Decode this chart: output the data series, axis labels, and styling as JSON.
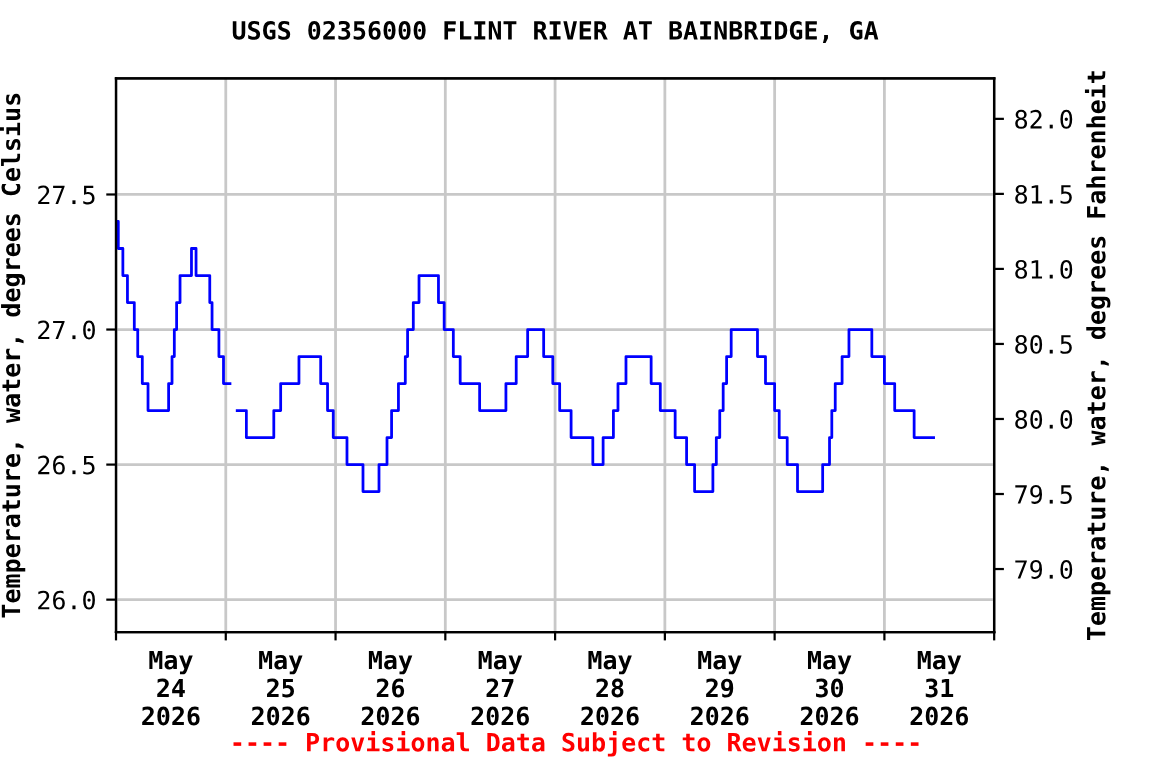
{
  "chart_data": {
    "type": "step",
    "title": "USGS 02356000 FLINT RIVER AT BAINBRIDGE, GA",
    "ylabel": "Temperature, water, degrees Celsius",
    "y2label": "Temperature, water, degrees Fahrenheit",
    "annotations": [
      "---- Provisional Data Subject to Revision ----"
    ],
    "x": [
      "2026-05-24T00:00",
      "2026-05-24T00:30",
      "2026-05-24T01:30",
      "2026-05-24T02:30",
      "2026-05-24T04:00",
      "2026-05-24T04:45",
      "2026-05-24T05:45",
      "2026-05-24T07:00",
      "2026-05-24T11:30",
      "2026-05-24T12:15",
      "2026-05-24T12:45",
      "2026-05-24T13:15",
      "2026-05-24T14:00",
      "2026-05-24T16:30",
      "2026-05-24T17:30",
      "2026-05-24T20:30",
      "2026-05-24T21:00",
      "2026-05-24T22:30",
      "2026-05-24T23:30",
      "2026-05-25T00:55",
      "2026-05-25T02:30",
      "2026-05-25T04:30",
      "2026-05-25T10:30",
      "2026-05-25T12:00",
      "2026-05-25T16:00",
      "2026-05-25T20:45",
      "2026-05-25T22:15",
      "2026-05-25T23:30",
      "2026-05-26T02:30",
      "2026-05-26T06:00",
      "2026-05-26T09:30",
      "2026-05-26T11:15",
      "2026-05-26T12:15",
      "2026-05-26T13:45",
      "2026-05-26T15:15",
      "2026-05-26T15:45",
      "2026-05-26T17:00",
      "2026-05-26T18:15",
      "2026-05-26T22:30",
      "2026-05-26T23:45",
      "2026-05-27T01:45",
      "2026-05-27T03:15",
      "2026-05-27T07:30",
      "2026-05-27T13:15",
      "2026-05-27T15:30",
      "2026-05-27T18:00",
      "2026-05-27T21:30",
      "2026-05-27T23:30",
      "2026-05-28T01:00",
      "2026-05-28T03:30",
      "2026-05-28T08:15",
      "2026-05-28T10:30",
      "2026-05-28T12:45",
      "2026-05-28T13:45",
      "2026-05-28T15:30",
      "2026-05-28T21:00",
      "2026-05-28T23:00",
      "2026-05-29T02:15",
      "2026-05-29T04:45",
      "2026-05-29T06:30",
      "2026-05-29T10:30",
      "2026-05-29T11:15",
      "2026-05-29T12:00",
      "2026-05-29T12:45",
      "2026-05-29T13:30",
      "2026-05-29T14:30",
      "2026-05-29T20:15",
      "2026-05-29T22:00",
      "2026-05-30T00:00",
      "2026-05-30T01:00",
      "2026-05-30T02:45",
      "2026-05-30T05:00",
      "2026-05-30T10:30",
      "2026-05-30T12:00",
      "2026-05-30T12:30",
      "2026-05-30T13:15",
      "2026-05-30T14:45",
      "2026-05-30T16:15",
      "2026-05-30T21:15",
      "2026-05-31T00:00",
      "2026-05-31T02:15",
      "2026-05-31T06:30",
      "2026-05-31T10:45"
    ],
    "series": [
      {
        "color": "#0000ff",
        "values": [
          27.4,
          27.3,
          27.2,
          27.1,
          27.0,
          26.9,
          26.8,
          26.7,
          26.8,
          26.9,
          27.0,
          27.1,
          27.2,
          27.3,
          27.2,
          27.1,
          27.0,
          26.9,
          26.8,
          null,
          26.7,
          26.6,
          26.7,
          26.8,
          26.9,
          26.8,
          26.7,
          26.6,
          26.5,
          26.4,
          26.5,
          26.6,
          26.7,
          26.8,
          26.9,
          27.0,
          27.1,
          27.2,
          27.1,
          27.0,
          26.9,
          26.8,
          26.7,
          26.8,
          26.9,
          27.0,
          26.9,
          26.8,
          26.7,
          26.6,
          26.5,
          26.6,
          26.7,
          26.8,
          26.9,
          26.8,
          26.7,
          26.6,
          26.5,
          26.4,
          26.5,
          26.6,
          26.7,
          26.8,
          26.9,
          27.0,
          26.9,
          26.8,
          26.7,
          26.6,
          26.5,
          26.4,
          26.5,
          26.6,
          26.7,
          26.8,
          26.9,
          27.0,
          26.9,
          26.8,
          26.7,
          26.6,
          26.6
        ]
      }
    ],
    "xlim": [
      "2026-05-24T00:00",
      "2026-06-01T00:00"
    ],
    "xticks": [
      {
        "value": "2026-05-24T00:00",
        "label": null
      },
      {
        "value": "2026-05-24T12:00",
        "label": "May\n24\n2026"
      },
      {
        "value": "2026-05-25T00:00",
        "label": null
      },
      {
        "value": "2026-05-25T12:00",
        "label": "May\n25\n2026"
      },
      {
        "value": "2026-05-26T00:00",
        "label": null
      },
      {
        "value": "2026-05-26T12:00",
        "label": "May\n26\n2026"
      },
      {
        "value": "2026-05-27T00:00",
        "label": null
      },
      {
        "value": "2026-05-27T12:00",
        "label": "May\n27\n2026"
      },
      {
        "value": "2026-05-28T00:00",
        "label": null
      },
      {
        "value": "2026-05-28T12:00",
        "label": "May\n28\n2026"
      },
      {
        "value": "2026-05-29T00:00",
        "label": null
      },
      {
        "value": "2026-05-29T12:00",
        "label": "May\n29\n2026"
      },
      {
        "value": "2026-05-30T00:00",
        "label": null
      },
      {
        "value": "2026-05-30T12:00",
        "label": "May\n30\n2026"
      },
      {
        "value": "2026-05-31T00:00",
        "label": null
      },
      {
        "value": "2026-05-31T12:00",
        "label": "May\n31\n2026"
      },
      {
        "value": "2026-06-01T00:00",
        "label": null
      }
    ],
    "ylim": [
      25.88,
      27.93
    ],
    "yticks": [
      {
        "value": 26.0,
        "label": "26.0"
      },
      {
        "value": 26.5,
        "label": "26.5"
      },
      {
        "value": 27.0,
        "label": "27.0"
      },
      {
        "value": 27.5,
        "label": "27.5"
      }
    ],
    "y2lim": [
      78.58,
      82.27
    ],
    "y2ticks": [
      {
        "value": 79.0,
        "label": "79.0"
      },
      {
        "value": 79.5,
        "label": "79.5"
      },
      {
        "value": 80.0,
        "label": "80.0"
      },
      {
        "value": 80.5,
        "label": "80.5"
      },
      {
        "value": 81.0,
        "label": "81.0"
      },
      {
        "value": 81.5,
        "label": "81.5"
      },
      {
        "value": 82.0,
        "label": "82.0"
      }
    ],
    "grid": true,
    "line_style": "solid",
    "marker": "none"
  }
}
